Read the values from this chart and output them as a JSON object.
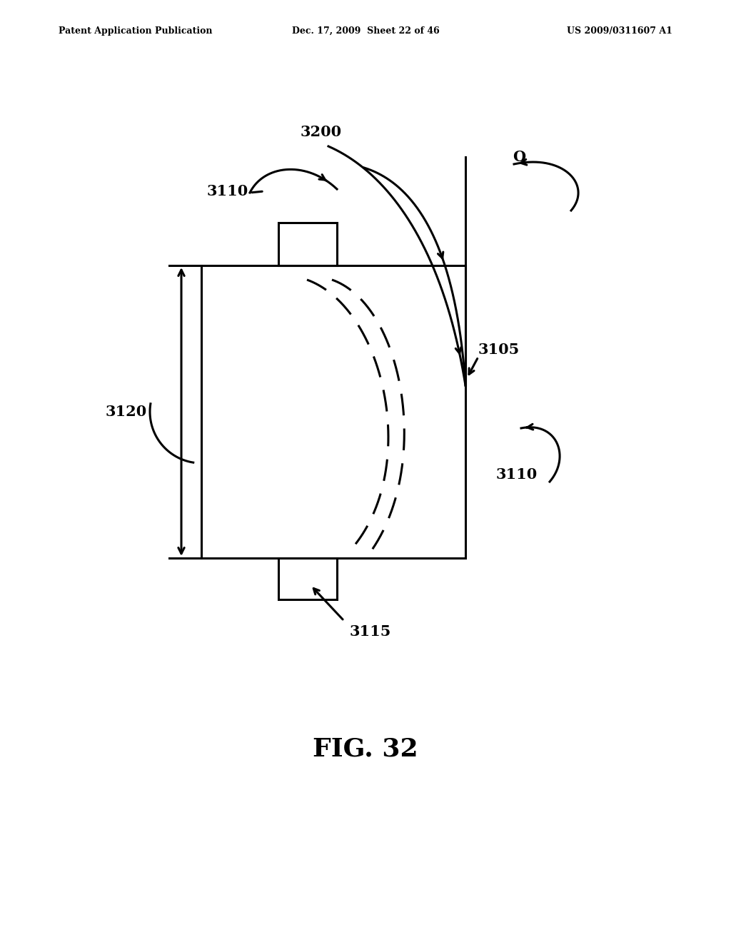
{
  "bg_color": "#ffffff",
  "line_color": "#000000",
  "header_left": "Patent Application Publication",
  "header_center": "Dec. 17, 2009  Sheet 22 of 46",
  "header_right": "US 2009/0311607 A1",
  "figure_label": "FIG. 32",
  "labels": {
    "3110_top": "3110",
    "3200": "3200",
    "O": "O",
    "3105": "3105",
    "3110_right": "3110",
    "3120": "3120",
    "3115": "3115"
  }
}
